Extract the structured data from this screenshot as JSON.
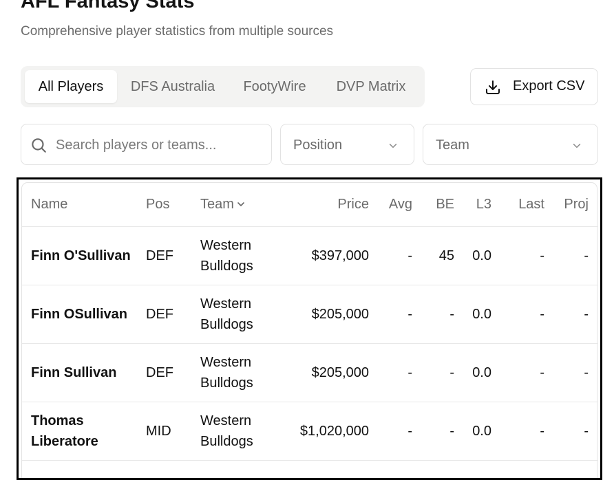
{
  "header": {
    "title": "AFL Fantasy Stats",
    "subtitle": "Comprehensive player statistics from multiple sources"
  },
  "tabs": [
    {
      "label": "All Players",
      "active": true
    },
    {
      "label": "DFS Australia",
      "active": false
    },
    {
      "label": "FootyWire",
      "active": false
    },
    {
      "label": "DVP Matrix",
      "active": false
    }
  ],
  "export": {
    "label": "Export CSV",
    "icon": "download-icon"
  },
  "filters": {
    "search_placeholder": "Search players or teams...",
    "position_value": "Position",
    "team_value": "Team"
  },
  "table": {
    "columns": [
      "Name",
      "Pos",
      "Team",
      "Price",
      "Avg",
      "BE",
      "L3",
      "Last",
      "Proj"
    ],
    "sorted_column": "Team",
    "rows": [
      {
        "name": "Finn O'Sullivan",
        "pos": "DEF",
        "team": "Western Bulldogs",
        "price": "$397,000",
        "avg": "-",
        "be": "45",
        "l3": "0.0",
        "last": "-",
        "proj": "-"
      },
      {
        "name": "Finn OSullivan",
        "pos": "DEF",
        "team": "Western Bulldogs",
        "price": "$205,000",
        "avg": "-",
        "be": "-",
        "l3": "0.0",
        "last": "-",
        "proj": "-"
      },
      {
        "name": "Finn Sullivan",
        "pos": "DEF",
        "team": "Western Bulldogs",
        "price": "$205,000",
        "avg": "-",
        "be": "-",
        "l3": "0.0",
        "last": "-",
        "proj": "-"
      },
      {
        "name": "Thomas Liberatore",
        "pos": "MID",
        "team": "Western Bulldogs",
        "price": "$1,020,000",
        "avg": "-",
        "be": "-",
        "l3": "0.0",
        "last": "-",
        "proj": "-"
      }
    ]
  },
  "colors": {
    "text": "#111111",
    "muted": "#6b6b6b",
    "border": "#e2e2e2",
    "tab_bg": "#f3f3f2"
  }
}
